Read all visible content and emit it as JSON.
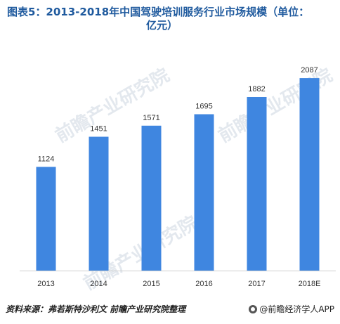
{
  "title": {
    "line1": "图表5：2013-2018年中国驾驶培训服务行业市场规模（单位：",
    "line2": "亿元）"
  },
  "chart_data": {
    "type": "bar",
    "title": "图表5：2013-2018年中国驾驶培训服务行业市场规模（单位：亿元）",
    "categories": [
      "2013",
      "2014",
      "2015",
      "2016",
      "2017",
      "2018E"
    ],
    "values": [
      1124,
      1451,
      1571,
      1695,
      1882,
      2087
    ],
    "xlabel": "",
    "ylabel": "",
    "ylim": [
      0,
      2400
    ],
    "grid": false,
    "legend": "none",
    "bar_color": "#3f86e0",
    "axis_color": "#cfcfcf"
  },
  "watermark": {
    "text": "前瞻产业研究院"
  },
  "footer": {
    "source": "资料来源：弗若斯特沙利文  前瞻产业研究院整理",
    "brand": "@前瞻经济学人APP"
  }
}
